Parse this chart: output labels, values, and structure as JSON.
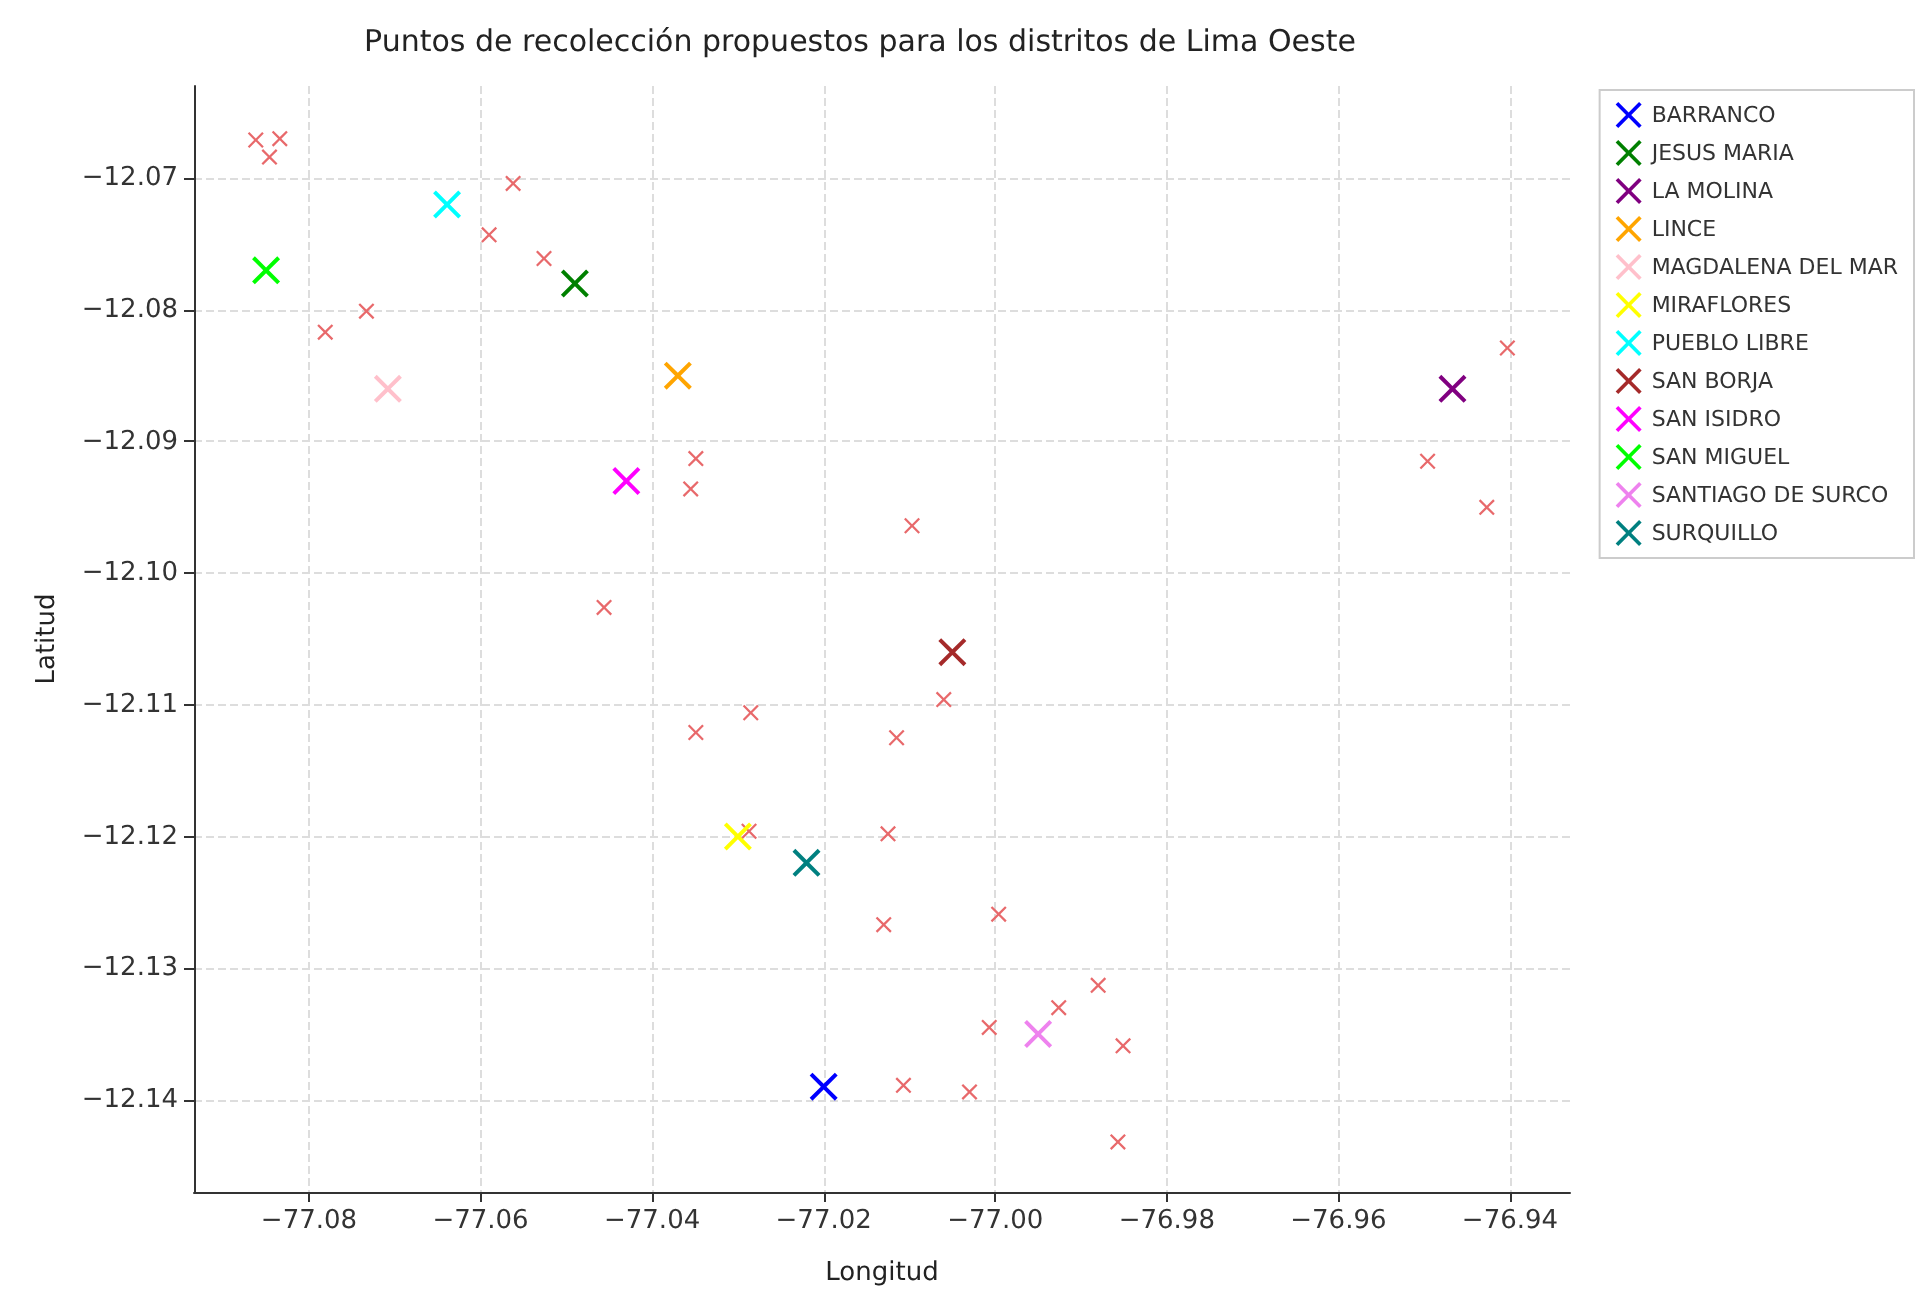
{
  "chart_data": {
    "type": "scatter",
    "title": "Puntos de recolección propuestos para los distritos de Lima Oeste",
    "xlabel": "Longitud",
    "ylabel": "Latitud",
    "xlim": [
      -77.0934,
      -76.933
    ],
    "ylim": [
      -12.147,
      -12.063
    ],
    "xticks": [
      {
        "value": -77.08,
        "label": "−77.08"
      },
      {
        "value": -77.06,
        "label": "−77.06"
      },
      {
        "value": -77.04,
        "label": "−77.04"
      },
      {
        "value": -77.02,
        "label": "−77.02"
      },
      {
        "value": -77.0,
        "label": "−77.00"
      },
      {
        "value": -76.98,
        "label": "−76.98"
      },
      {
        "value": -76.96,
        "label": "−76.96"
      },
      {
        "value": -76.94,
        "label": "−76.94"
      }
    ],
    "yticks": [
      {
        "value": -12.07,
        "label": "−12.07"
      },
      {
        "value": -12.08,
        "label": "−12.08"
      },
      {
        "value": -12.09,
        "label": "−12.09"
      },
      {
        "value": -12.1,
        "label": "−12.10"
      },
      {
        "value": -12.11,
        "label": "−12.11"
      },
      {
        "value": -12.12,
        "label": "−12.12"
      },
      {
        "value": -12.13,
        "label": "−12.13"
      },
      {
        "value": -12.14,
        "label": "−12.14"
      }
    ],
    "grid": true,
    "legend": "top right",
    "marker": "cross",
    "series": [
      {
        "color": "#e8696b",
        "x": [
          -77.0862,
          -77.0834,
          -77.0846,
          -77.0562,
          -77.059,
          -77.0526,
          -77.0733,
          -77.0781,
          -77.0349,
          -77.0355,
          -77.0097,
          -77.0456,
          -76.9403,
          -76.9496,
          -76.9427,
          -77.0349,
          -77.0285,
          -77.0115,
          -77.0287,
          -77.0125,
          -77.013,
          -77.0107,
          -77.006,
          -76.9996,
          -76.988,
          -76.9926,
          -77.0007,
          -76.9851,
          -77.003,
          -76.9857
        ],
        "values": [
          -12.0671,
          -12.067,
          -12.0684,
          -12.0704,
          -12.0743,
          -12.0761,
          -12.0801,
          -12.0817,
          -12.0913,
          -12.0936,
          -12.0964,
          -12.1026,
          -12.0829,
          -12.0915,
          -12.095,
          -12.1121,
          -12.1106,
          -12.1125,
          -12.1196,
          -12.1198,
          -12.1267,
          -12.1389,
          -12.1096,
          -12.1259,
          -12.1313,
          -12.133,
          -12.1345,
          -12.1359,
          -12.1394,
          -12.1432
        ]
      },
      {
        "name": "BARRANCO",
        "color": "#0000ff",
        "x": [
          -77.02
        ],
        "values": [
          -12.139
        ]
      },
      {
        "name": "JESUS MARIA",
        "color": "#008000",
        "x": [
          -77.049
        ],
        "values": [
          -12.078
        ]
      },
      {
        "name": "LA MOLINA",
        "color": "#800080",
        "x": [
          -76.9467
        ],
        "values": [
          -12.086
        ]
      },
      {
        "name": "LINCE",
        "color": "#ffa500",
        "x": [
          -77.037
        ],
        "values": [
          -12.085
        ]
      },
      {
        "name": "MAGDALENA DEL MAR",
        "color": "#ffc0cb",
        "x": [
          -77.0708
        ],
        "values": [
          -12.086
        ]
      },
      {
        "name": "MIRAFLORES",
        "color": "#ffff00",
        "x": [
          -77.03
        ],
        "values": [
          -12.12
        ]
      },
      {
        "name": "PUEBLO LIBRE",
        "color": "#00ffff",
        "x": [
          -77.0639
        ],
        "values": [
          -12.072
        ]
      },
      {
        "name": "SAN BORJA",
        "color": "#a52a2a",
        "x": [
          -77.005
        ],
        "values": [
          -12.106
        ]
      },
      {
        "name": "SAN ISIDRO",
        "color": "#ff00ff",
        "x": [
          -77.043
        ],
        "values": [
          -12.093
        ]
      },
      {
        "name": "SAN MIGUEL",
        "color": "#00ff00",
        "x": [
          -77.085
        ],
        "values": [
          -12.077
        ]
      },
      {
        "name": "SANTIAGO DE SURCO",
        "color": "#ee82ee",
        "x": [
          -76.995
        ],
        "values": [
          -12.135
        ]
      },
      {
        "name": "SURQUILLO",
        "color": "#008080",
        "x": [
          -77.022
        ],
        "values": [
          -12.122
        ]
      }
    ]
  }
}
